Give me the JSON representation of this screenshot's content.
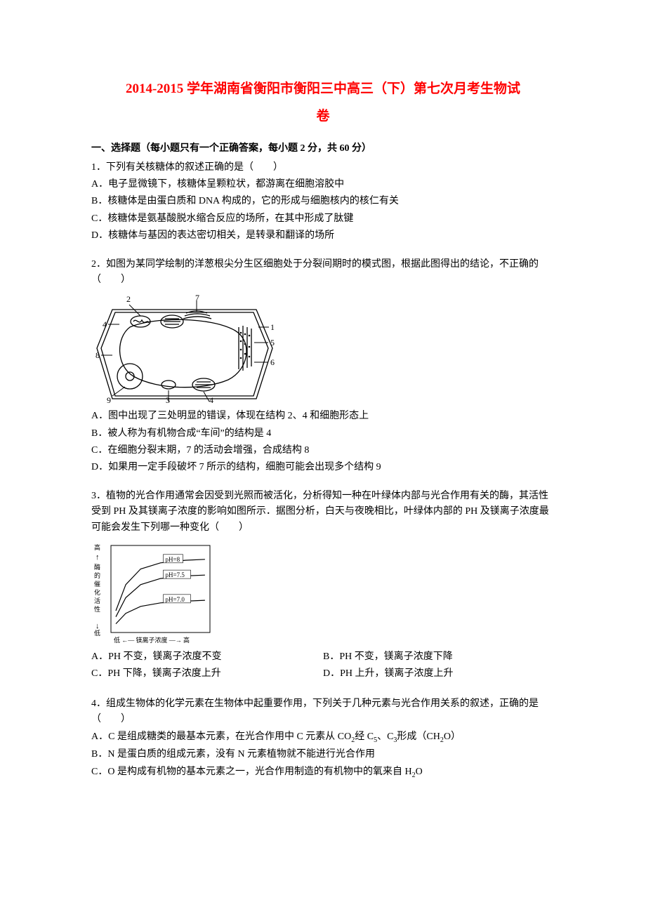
{
  "title_line1": "2014-2015 学年湖南省衡阳市衡阳三中高三（下）第七次月考生物试",
  "title_line2": "卷",
  "section1_header": "一、选择题（每小题只有一个正确答案，每小题 2 分，共 60 分）",
  "q1": {
    "stem": "1．下列有关核糖体的叙述正确的是（　　）",
    "A": "A．电子显微镜下，核糖体呈颗粒状，都游离在细胞溶胶中",
    "B": "B．核糖体是由蛋白质和 DNA 构成的，它的形成与细胞核内的核仁有关",
    "C": "C．核糖体是氨基酸脱水缩合反应的场所，在其中形成了肽键",
    "D": "D．核糖体与基因的表达密切相关，是转录和翻译的场所"
  },
  "q2": {
    "stem": "2．如图为某同学绘制的洋葱根尖分生区细胞处于分裂间期时的模式图，根据此图得出的结论，不正确的（　　）",
    "A": "A．图中出现了三处明显的错误，体现在结构 2、4 和细胞形态上",
    "B": "B．被人称为有机物合成“车间”的结构是 4",
    "C": "C．在细胞分裂末期，7 的活动会增强，合成结构 8",
    "D": "D．如果用一定手段破坏 7 所示的结构，细胞可能会出现多个结构 9",
    "fig_labels": [
      "1",
      "2",
      "3",
      "4",
      "5",
      "6",
      "7",
      "8",
      "9"
    ],
    "fig_width": 265,
    "fig_height": 160
  },
  "q3": {
    "stem": "3．植物的光合作用通常会因受到光照而被活化，分析得知一种在叶绿体内部与光合作用有关的酶，其活性受到 PH 及其镁离子浓度的影响如图所示．据图分析，白天与夜晚相比，叶绿体内部的 PH 及镁离子浓度最可能会发生下列哪一种变化（　　）",
    "A": "A．PH 不变，镁离子浓度不变",
    "B": "B．PH 不变，镁离子浓度下降",
    "C": "C．PH 下降，镁离子浓度上升",
    "D": "D．PH 上升，镁离子浓度上升",
    "chart": {
      "type": "line",
      "width": 175,
      "height": 150,
      "background_color": "#ffffff",
      "axis_color": "#000000",
      "y_label_top": "高",
      "y_label_mid": "酶的催化活性",
      "y_label_bottom": "低",
      "x_label": "低 ←— 镁离子浓度 —→ 高",
      "series": [
        {
          "label": "pH=8",
          "color": "#000000",
          "points": [
            [
              0.05,
              0.25
            ],
            [
              0.15,
              0.55
            ],
            [
              0.3,
              0.73
            ],
            [
              0.5,
              0.8
            ],
            [
              0.75,
              0.83
            ],
            [
              0.95,
              0.84
            ]
          ]
        },
        {
          "label": "pH=7.5",
          "color": "#000000",
          "points": [
            [
              0.05,
              0.18
            ],
            [
              0.15,
              0.4
            ],
            [
              0.3,
              0.55
            ],
            [
              0.5,
              0.62
            ],
            [
              0.75,
              0.65
            ],
            [
              0.95,
              0.66
            ]
          ]
        },
        {
          "label": "pH=7.0",
          "color": "#000000",
          "points": [
            [
              0.05,
              0.1
            ],
            [
              0.15,
              0.22
            ],
            [
              0.3,
              0.3
            ],
            [
              0.5,
              0.34
            ],
            [
              0.75,
              0.36
            ],
            [
              0.95,
              0.37
            ]
          ]
        }
      ],
      "line_width": 1.2,
      "label_fontsize": 9
    }
  },
  "q4": {
    "stem": "4．组成生物体的化学元素在生物体中起重要作用，下列关于几种元素与光合作用关系的叙述，正确的是（　　）",
    "A_pre": "A．C 是组成糖类的最基本元素，在光合作用中 C 元素从 CO",
    "A_mid1": "经 C",
    "A_mid2": "、C",
    "A_post": "形成（CH",
    "A_end": "O）",
    "B": "B．N 是蛋白质的组成元素，没有 N 元素植物就不能进行光合作用",
    "C_pre": "C．O 是构成有机物的基本元素之一，光合作用制造的有机物中的氧来自 H",
    "C_post": "O"
  }
}
